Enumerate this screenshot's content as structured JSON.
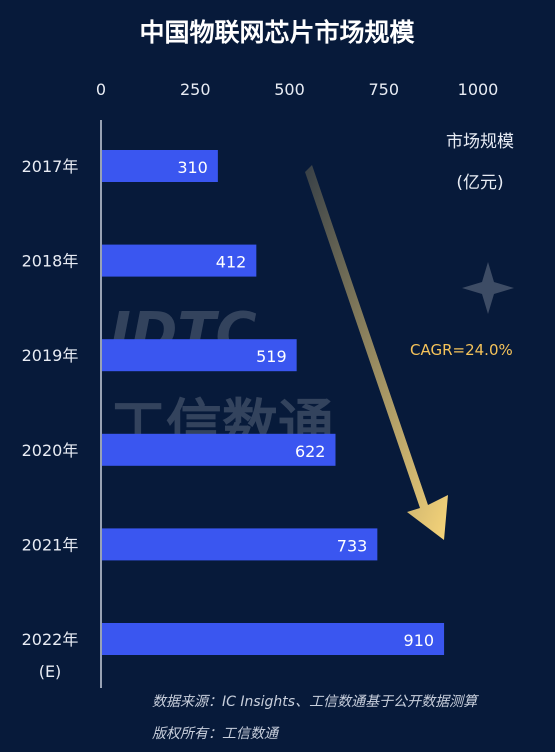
{
  "chart_data": {
    "type": "bar",
    "orientation": "horizontal",
    "title": "中国物联网芯片市场规模",
    "unit_label": [
      "市场规模",
      "(亿元)"
    ],
    "categories": [
      [
        "2017年"
      ],
      [
        "2018年"
      ],
      [
        "2019年"
      ],
      [
        "2020年"
      ],
      [
        "2021年"
      ],
      [
        "2022年",
        "(E)"
      ]
    ],
    "values": [
      310,
      412,
      519,
      622,
      733,
      910
    ],
    "xlim": [
      0,
      1000
    ],
    "xticks": [
      0,
      250,
      500,
      750,
      1000
    ],
    "annotation": "CAGR=24.0%",
    "bar_color": "#3a56f0",
    "arrow_color": "#f7d57a",
    "grid": false
  },
  "source": [
    "数据来源：IC Insights、工信数通基于公开数据测算",
    "版权所有：工信数通"
  ],
  "watermark": {
    "logo": "IDTC",
    "text": "工信数通"
  }
}
